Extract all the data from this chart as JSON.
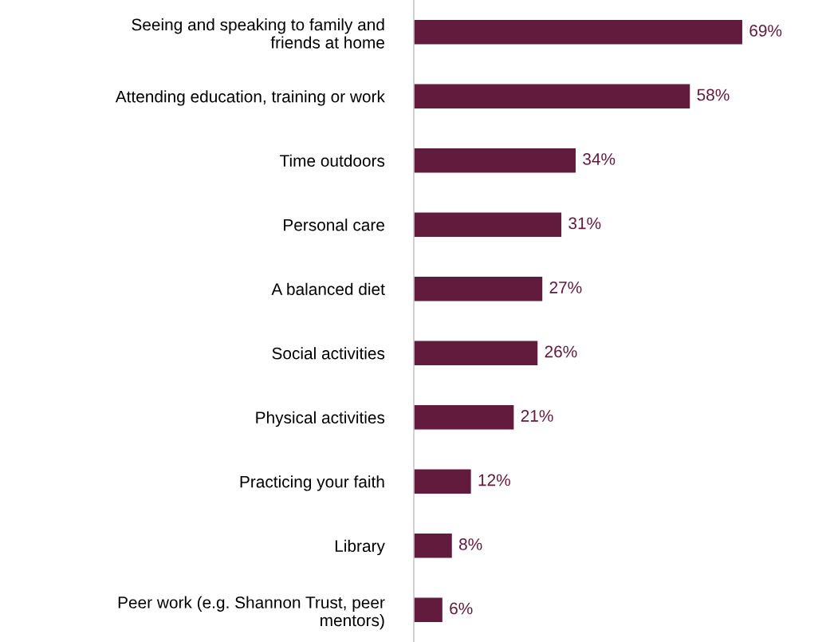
{
  "chart_data": {
    "type": "bar",
    "orientation": "horizontal",
    "categories": [
      "Seeing and speaking to family and\nfriends at home",
      "Attending education, training or work",
      "Time outdoors",
      "Personal care",
      "A balanced diet",
      "Social activities",
      "Physical activities",
      "Practicing your faith",
      "Library",
      "Peer work (e.g. Shannon Trust, peer\nmentors)"
    ],
    "values": [
      69,
      58,
      34,
      31,
      27,
      26,
      21,
      12,
      8,
      6
    ],
    "value_labels": [
      "69%",
      "58%",
      "34%",
      "31%",
      "27%",
      "26%",
      "21%",
      "12%",
      "8%",
      "6%"
    ],
    "color": "#621a3d",
    "grid": false,
    "legend": false
  }
}
